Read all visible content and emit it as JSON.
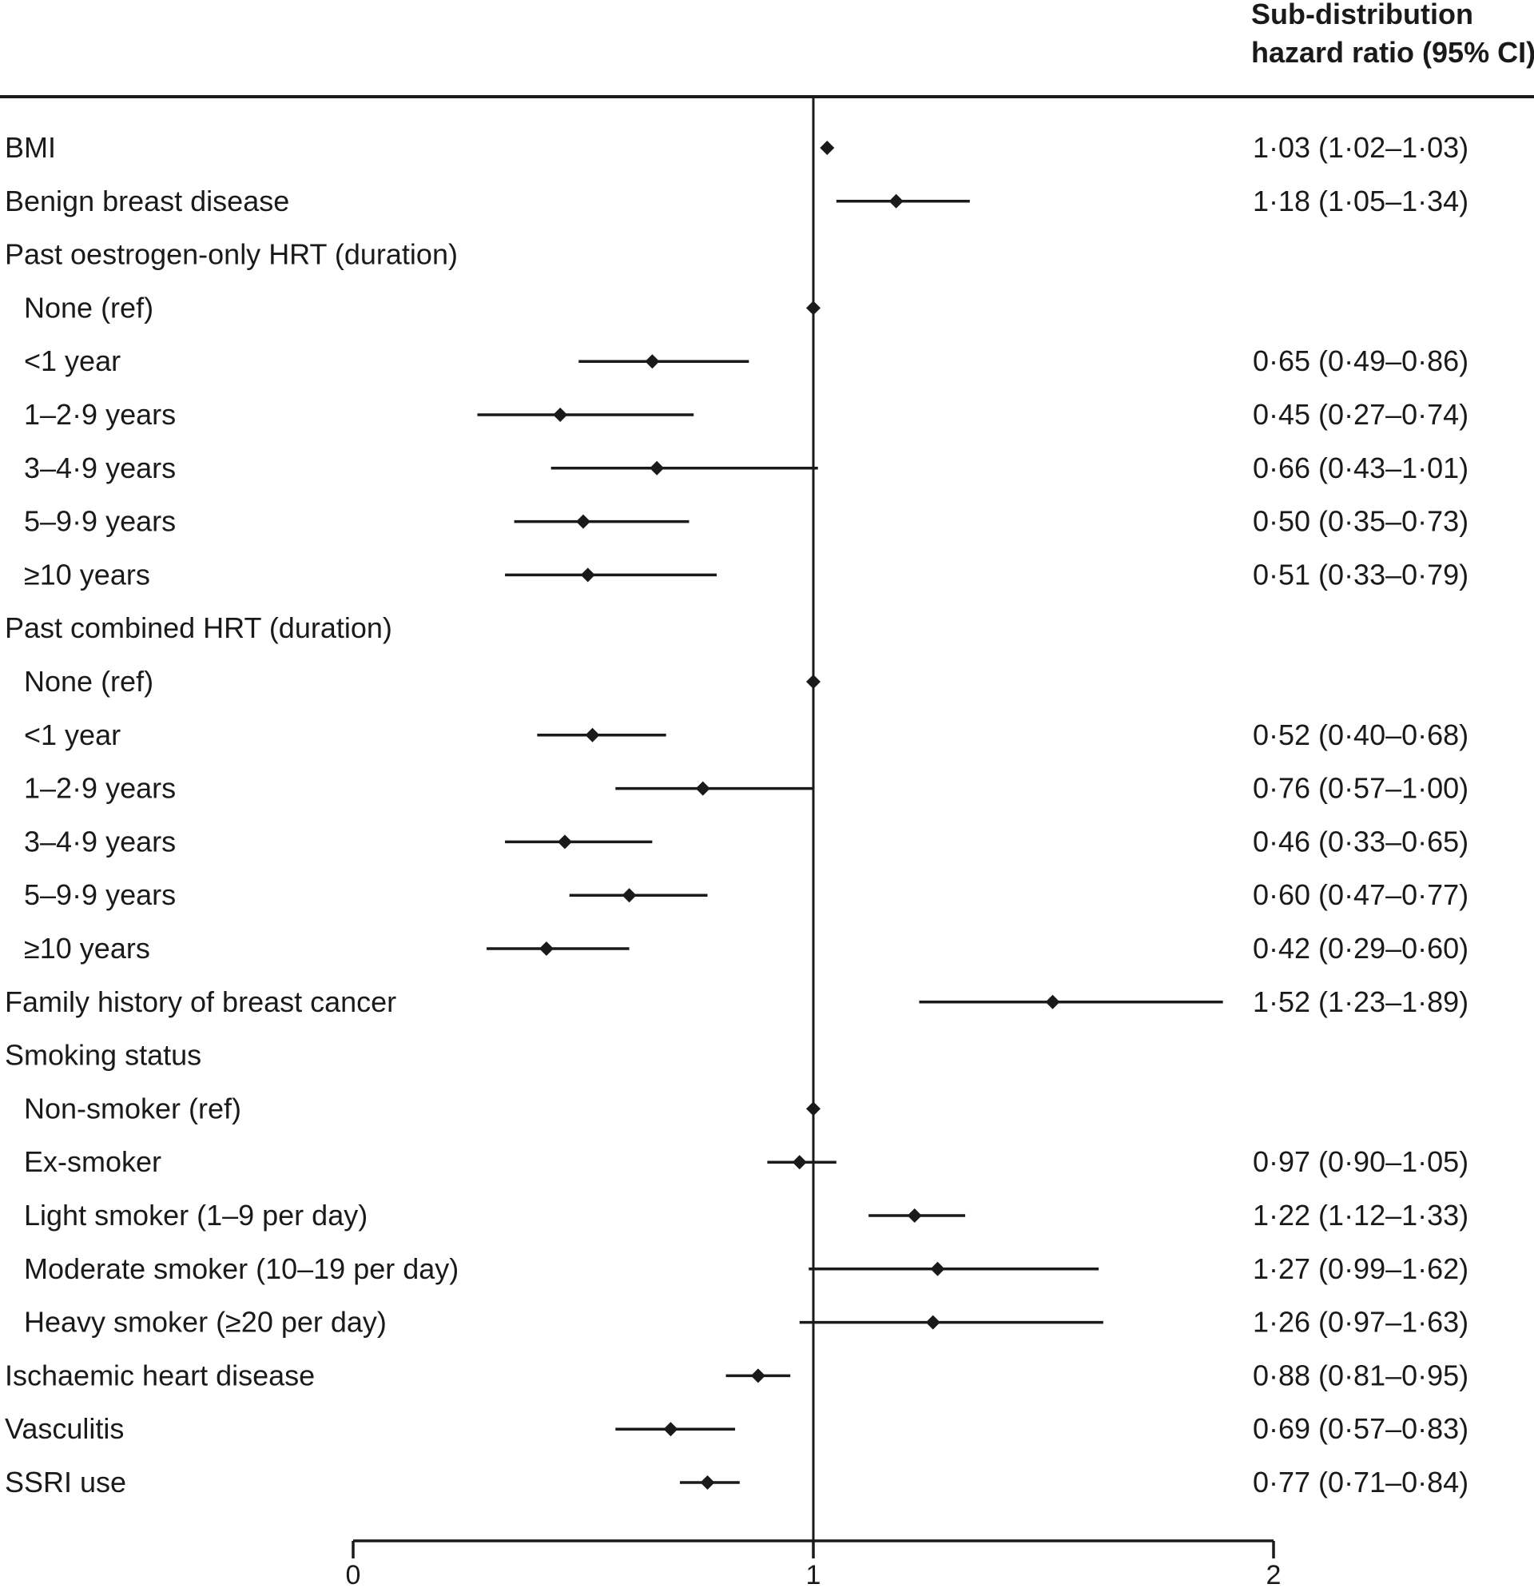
{
  "chart_data": {
    "type": "forest",
    "header_lines": [
      "Sub-distribution",
      "hazard ratio (95% CI)"
    ],
    "xlim": [
      0,
      2
    ],
    "xticks": [
      0,
      1,
      2
    ],
    "xtick_labels": [
      "0",
      "1",
      "2"
    ],
    "reference_line": 1,
    "rows": [
      {
        "label": "BMI",
        "indent": false,
        "hr": 1.03,
        "lo": 1.02,
        "hi": 1.03,
        "hr_text": "1·03 (1·02–1·03)"
      },
      {
        "label": "Benign breast disease",
        "indent": false,
        "hr": 1.18,
        "lo": 1.05,
        "hi": 1.34,
        "hr_text": "1·18 (1·05–1·34)"
      },
      {
        "label": "Past oestrogen-only HRT (duration)",
        "indent": false,
        "hr": null,
        "lo": null,
        "hi": null,
        "hr_text": ""
      },
      {
        "label": "None (ref)",
        "indent": true,
        "hr": 1.0,
        "lo": null,
        "hi": null,
        "hr_text": ""
      },
      {
        "label": "<1 year",
        "indent": true,
        "hr": 0.65,
        "lo": 0.49,
        "hi": 0.86,
        "hr_text": "0·65 (0·49–0·86)"
      },
      {
        "label": "1–2·9 years",
        "indent": true,
        "hr": 0.45,
        "lo": 0.27,
        "hi": 0.74,
        "hr_text": "0·45 (0·27–0·74)"
      },
      {
        "label": "3–4·9 years",
        "indent": true,
        "hr": 0.66,
        "lo": 0.43,
        "hi": 1.01,
        "hr_text": "0·66 (0·43–1·01)"
      },
      {
        "label": "5–9·9 years",
        "indent": true,
        "hr": 0.5,
        "lo": 0.35,
        "hi": 0.73,
        "hr_text": "0·50 (0·35–0·73)"
      },
      {
        "label": "≥10 years",
        "indent": true,
        "hr": 0.51,
        "lo": 0.33,
        "hi": 0.79,
        "hr_text": "0·51 (0·33–0·79)"
      },
      {
        "label": "Past combined HRT (duration)",
        "indent": false,
        "hr": null,
        "lo": null,
        "hi": null,
        "hr_text": ""
      },
      {
        "label": "None (ref)",
        "indent": true,
        "hr": 1.0,
        "lo": null,
        "hi": null,
        "hr_text": ""
      },
      {
        "label": "<1 year",
        "indent": true,
        "hr": 0.52,
        "lo": 0.4,
        "hi": 0.68,
        "hr_text": "0·52 (0·40–0·68)"
      },
      {
        "label": "1–2·9 years",
        "indent": true,
        "hr": 0.76,
        "lo": 0.57,
        "hi": 1.0,
        "hr_text": "0·76 (0·57–1·00)"
      },
      {
        "label": "3–4·9 years",
        "indent": true,
        "hr": 0.46,
        "lo": 0.33,
        "hi": 0.65,
        "hr_text": "0·46 (0·33–0·65)"
      },
      {
        "label": "5–9·9 years",
        "indent": true,
        "hr": 0.6,
        "lo": 0.47,
        "hi": 0.77,
        "hr_text": "0·60 (0·47–0·77)"
      },
      {
        "label": "≥10 years",
        "indent": true,
        "hr": 0.42,
        "lo": 0.29,
        "hi": 0.6,
        "hr_text": "0·42 (0·29–0·60)"
      },
      {
        "label": "Family history of breast cancer",
        "indent": false,
        "hr": 1.52,
        "lo": 1.23,
        "hi": 1.89,
        "hr_text": "1·52 (1·23–1·89)"
      },
      {
        "label": "Smoking status",
        "indent": false,
        "hr": null,
        "lo": null,
        "hi": null,
        "hr_text": ""
      },
      {
        "label": "Non-smoker (ref)",
        "indent": true,
        "hr": 1.0,
        "lo": null,
        "hi": null,
        "hr_text": ""
      },
      {
        "label": "Ex-smoker",
        "indent": true,
        "hr": 0.97,
        "lo": 0.9,
        "hi": 1.05,
        "hr_text": "0·97 (0·90–1·05)"
      },
      {
        "label": "Light smoker (1–9 per day)",
        "indent": true,
        "hr": 1.22,
        "lo": 1.12,
        "hi": 1.33,
        "hr_text": "1·22 (1·12–1·33)"
      },
      {
        "label": "Moderate smoker (10–19 per day)",
        "indent": true,
        "hr": 1.27,
        "lo": 0.99,
        "hi": 1.62,
        "hr_text": "1·27 (0·99–1·62)"
      },
      {
        "label": "Heavy smoker (≥20 per day)",
        "indent": true,
        "hr": 1.26,
        "lo": 0.97,
        "hi": 1.63,
        "hr_text": "1·26 (0·97–1·63)"
      },
      {
        "label": "Ischaemic heart disease",
        "indent": false,
        "hr": 0.88,
        "lo": 0.81,
        "hi": 0.95,
        "hr_text": "0·88 (0·81–0·95)"
      },
      {
        "label": "Vasculitis",
        "indent": false,
        "hr": 0.69,
        "lo": 0.57,
        "hi": 0.83,
        "hr_text": "0·69 (0·57–0·83)"
      },
      {
        "label": "SSRI use",
        "indent": false,
        "hr": 0.77,
        "lo": 0.71,
        "hi": 0.84,
        "hr_text": "0·77 (0·71–0·84)"
      }
    ],
    "colors": {
      "ink": "#1a1a1a",
      "background": "#ffffff"
    }
  }
}
